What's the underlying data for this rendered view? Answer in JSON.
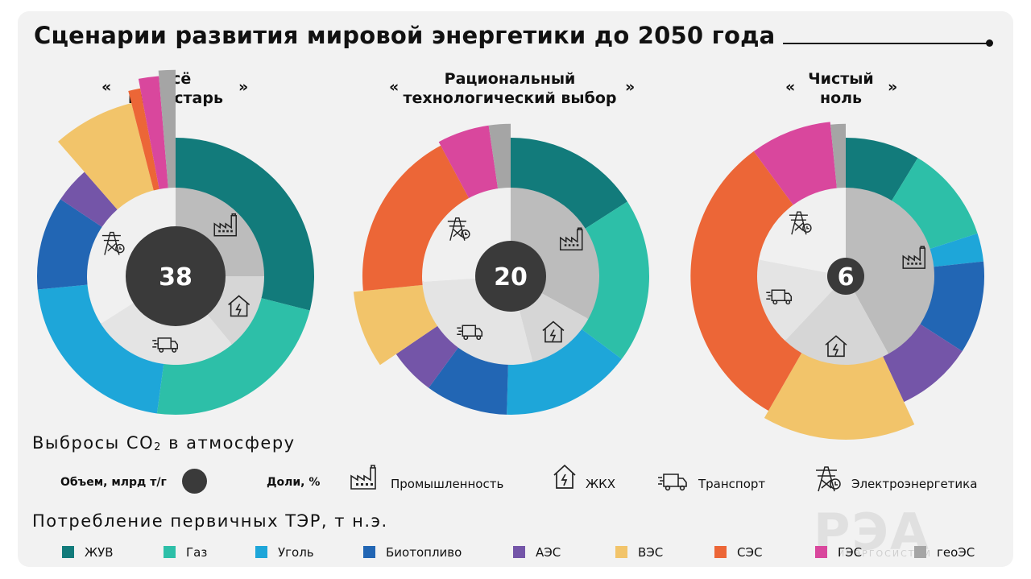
{
  "title": "Сценарии развития мировой энергетики до 2050 года",
  "colors": {
    "ЖУВ": "#127b7b",
    "Газ": "#2dbfa8",
    "Уголь": "#1ea6d9",
    "Биотопливо": "#2266b4",
    "АЭС": "#7455a8",
    "ВЭС": "#f2c46a",
    "СЭС": "#ec6637",
    "ГЭС": "#d9479d",
    "геоЭС": "#a5a5a5",
    "center": "#3a3a3a"
  },
  "quotes": {
    "open": "«",
    "close": "»"
  },
  "scenarios": [
    {
      "label_line1": "Всё",
      "label_line2": "как встарь",
      "co2": "38"
    },
    {
      "label_line1": "Рациональный",
      "label_line2": "технологический выбор",
      "co2": "20"
    },
    {
      "label_line1": "Чистый",
      "label_line2": "ноль",
      "co2": "6"
    }
  ],
  "chart_data": [
    {
      "type": "pie",
      "title": "Всё как встарь",
      "co2_emissions_volume": 38,
      "emission_shares": [
        {
          "sector": "Промышленность",
          "share": 25
        },
        {
          "sector": "ЖКХ",
          "share": 14
        },
        {
          "sector": "Транспорт",
          "share": 27
        },
        {
          "sector": "Электроэнергетика",
          "share": 34
        }
      ],
      "energy_consumption": [
        {
          "source": "ЖУВ",
          "share": 28.4,
          "radius_rel": 1.0
        },
        {
          "source": "Газ",
          "share": 22.7,
          "radius_rel": 1.0
        },
        {
          "source": "Уголь",
          "share": 20.9,
          "radius_rel": 1.0
        },
        {
          "source": "Биотопливо",
          "share": 10.7,
          "radius_rel": 1.0
        },
        {
          "source": "АЭС",
          "share": 4.1,
          "radius_rel": 1.0
        },
        {
          "source": "ВЭС",
          "share": 7.3,
          "radius_rel": 1.29
        },
        {
          "source": "СЭС",
          "share": 1.0,
          "radius_rel": 1.38
        },
        {
          "source": "ГЭС",
          "share": 1.6,
          "radius_rel": 1.45
        },
        {
          "source": "геоЭС",
          "share": 1.3,
          "radius_rel": 1.49
        }
      ]
    },
    {
      "type": "pie",
      "title": "Рациональный технологический выбор",
      "co2_emissions_volume": 20,
      "emission_shares": [
        {
          "sector": "Промышленность",
          "share": 33
        },
        {
          "sector": "ЖКХ",
          "share": 13
        },
        {
          "sector": "Транспорт",
          "share": 28
        },
        {
          "sector": "Электроэнергетика",
          "share": 26
        }
      ],
      "energy_consumption": [
        {
          "source": "ЖУВ",
          "share": 15.9,
          "radius_rel": 1.0
        },
        {
          "source": "Газ",
          "share": 19.2,
          "radius_rel": 1.0
        },
        {
          "source": "Уголь",
          "share": 15.2,
          "radius_rel": 1.0
        },
        {
          "source": "Биотопливо",
          "share": 9.6,
          "radius_rel": 1.0
        },
        {
          "source": "АЭС",
          "share": 5.4,
          "radius_rel": 1.0
        },
        {
          "source": "ВЭС",
          "share": 7.9,
          "radius_rel": 1.14
        },
        {
          "source": "СЭС",
          "share": 18.7,
          "radius_rel": 1.07
        },
        {
          "source": "ГЭС",
          "share": 5.5,
          "radius_rel": 1.1
        },
        {
          "source": "геоЭС",
          "share": 2.3,
          "radius_rel": 1.1
        }
      ]
    },
    {
      "type": "pie",
      "title": "Чистый ноль",
      "co2_emissions_volume": 6,
      "emission_shares": [
        {
          "sector": "Промышленность",
          "share": 42
        },
        {
          "sector": "ЖКХ",
          "share": 20
        },
        {
          "sector": "Транспорт",
          "share": 16
        },
        {
          "sector": "Электроэнергетика",
          "share": 22
        }
      ],
      "energy_consumption": [
        {
          "source": "ЖУВ",
          "share": 8.7,
          "radius_rel": 1.0
        },
        {
          "source": "Газ",
          "share": 11.3,
          "radius_rel": 1.0
        },
        {
          "source": "Уголь",
          "share": 3.3,
          "radius_rel": 1.0
        },
        {
          "source": "Биотопливо",
          "share": 10.8,
          "radius_rel": 1.0
        },
        {
          "source": "АЭС",
          "share": 9.0,
          "radius_rel": 1.0
        },
        {
          "source": "ВЭС",
          "share": 15.2,
          "radius_rel": 1.18
        },
        {
          "source": "СЭС",
          "share": 31.6,
          "radius_rel": 1.12
        },
        {
          "source": "ГЭС",
          "share": 8.5,
          "radius_rel": 1.12
        },
        {
          "source": "геоЭС",
          "share": 1.6,
          "radius_rel": 1.1
        }
      ]
    }
  ],
  "section1": {
    "title_prefix": "Выбросы CO",
    "title_sub": "2",
    "title_suffix": " в атмосферу",
    "volume_label": "Объем, млрд т/г",
    "shares_label": "Доли, %",
    "sectors": [
      {
        "label": "Промышленность",
        "icon": "factory-icon"
      },
      {
        "label": "ЖКХ",
        "icon": "house-icon"
      },
      {
        "label": "Транспорт",
        "icon": "truck-icon"
      },
      {
        "label": "Электроэнергетика",
        "icon": "power-plant-icon"
      }
    ]
  },
  "section2": {
    "title": "Потребление первичных ТЭР, т н.э.",
    "legend": [
      "ЖУВ",
      "Газ",
      "Уголь",
      "Биотопливо",
      "АЭС",
      "ВЭС",
      "СЭС",
      "ГЭС",
      "геоЭС"
    ]
  },
  "watermark": {
    "logo": "РЭА",
    "sub": "ИНЭРГОСИСТЕМ"
  }
}
